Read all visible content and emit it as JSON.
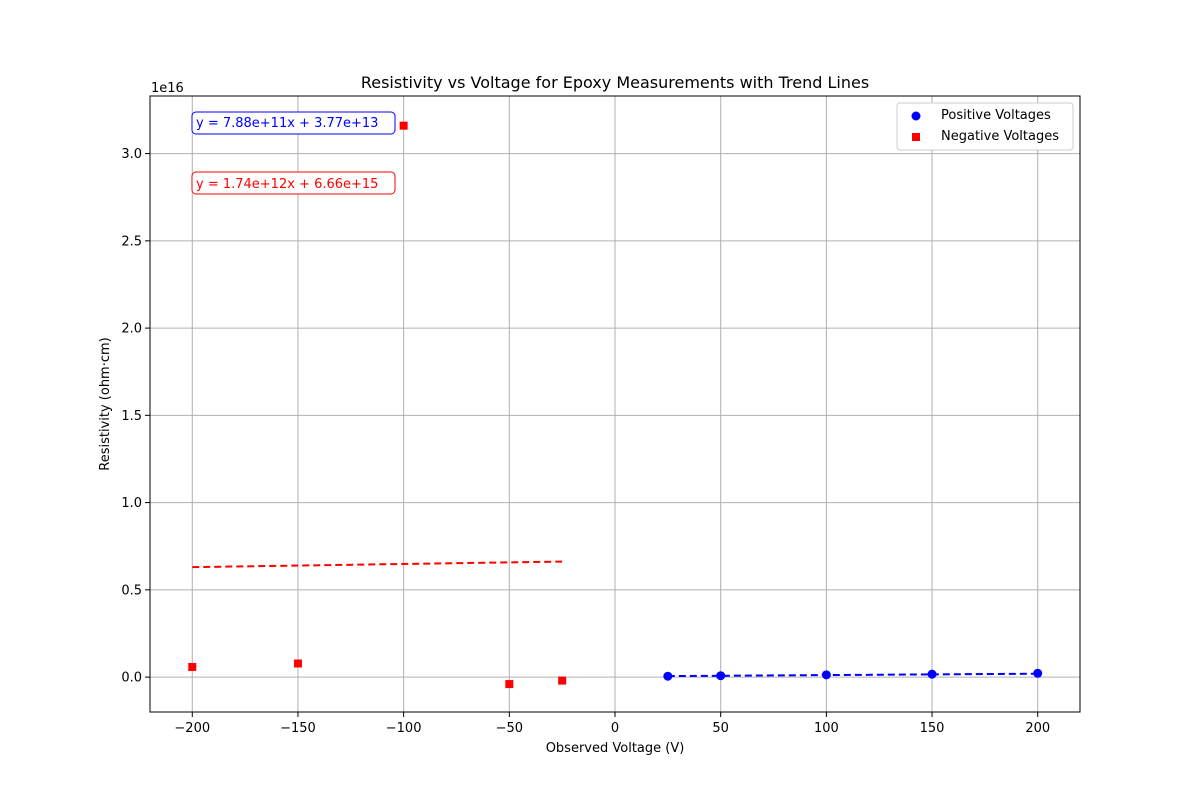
{
  "chart_data": {
    "type": "scatter",
    "title": "Resistivity vs Voltage for Epoxy Measurements with Trend Lines",
    "xlabel": "Observed Voltage (V)",
    "ylabel": "Resistivity (ohm·cm)",
    "y_offset_label": "1e16",
    "xlim": [
      -220,
      220
    ],
    "ylim": [
      -0.2,
      3.33
    ],
    "y_scale_note": "values in units of 1e16",
    "grid": true,
    "legend_position": "top-right",
    "x_ticks": [
      {
        "value": -200,
        "label": "−200"
      },
      {
        "value": -150,
        "label": "−150"
      },
      {
        "value": -100,
        "label": "−100"
      },
      {
        "value": -50,
        "label": "−50"
      },
      {
        "value": 0,
        "label": "0"
      },
      {
        "value": 50,
        "label": "50"
      },
      {
        "value": 100,
        "label": "100"
      },
      {
        "value": 150,
        "label": "150"
      },
      {
        "value": 200,
        "label": "200"
      }
    ],
    "y_ticks": [
      {
        "value": 0.0,
        "label": "0.0"
      },
      {
        "value": 0.5,
        "label": "0.5"
      },
      {
        "value": 1.0,
        "label": "1.0"
      },
      {
        "value": 1.5,
        "label": "1.5"
      },
      {
        "value": 2.0,
        "label": "2.0"
      },
      {
        "value": 2.5,
        "label": "2.5"
      },
      {
        "value": 3.0,
        "label": "3.0"
      }
    ],
    "series": [
      {
        "name": "Positive Voltages",
        "color": "#0000ff",
        "marker": "circle",
        "x": [
          25,
          50,
          100,
          150,
          200
        ],
        "y": [
          0.005,
          0.008,
          0.013,
          0.017,
          0.022
        ]
      },
      {
        "name": "Negative Voltages",
        "color": "#ff0000",
        "marker": "square",
        "x": [
          -200,
          -150,
          -100,
          -50,
          -25
        ],
        "y": [
          0.058,
          0.078,
          3.16,
          -0.04,
          -0.02
        ]
      }
    ],
    "trend_lines": [
      {
        "color": "#0000ff",
        "x_range": [
          25,
          200
        ],
        "y_range": [
          0.0057,
          0.0195
        ],
        "equation": "y = 7.88e+11x + 3.77e+13"
      },
      {
        "color": "#ff0000",
        "x_range": [
          -200,
          -25
        ],
        "y_range": [
          0.63,
          0.662
        ],
        "equation": "y = 1.74e+12x + 6.66e+15"
      }
    ]
  }
}
